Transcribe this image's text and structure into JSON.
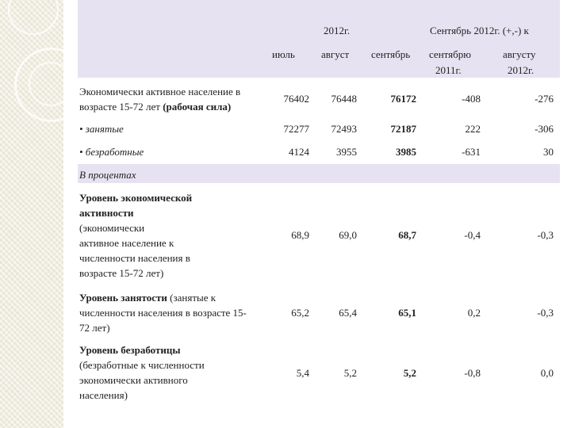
{
  "header": {
    "year": "2012г.",
    "change_title": "Сентябрь 2012г. (+,-) к",
    "col_july": "июль",
    "col_aug": "август",
    "col_sep": "сентябрь",
    "col_vs_sep": "сентябрю",
    "col_vs_sep_year": "2011г.",
    "col_vs_aug": "августу",
    "col_vs_aug_year": "2012г."
  },
  "rows": {
    "labor": {
      "label_1": "Экономически активное население в",
      "label_2a": "возрасте 15-72 лет ",
      "label_2b": "(рабочая сила)",
      "v": [
        "76402",
        "76448",
        "76172",
        "-408",
        "-276"
      ]
    },
    "employed": {
      "label": "• занятые",
      "v": [
        "72277",
        "72493",
        "72187",
        "222",
        "-306"
      ]
    },
    "unemployed": {
      "label": "• безработные",
      "v": [
        "4124",
        "3955",
        "3985",
        "-631",
        "30"
      ]
    },
    "percent_section": "В процентах",
    "activity": {
      "l1": "Уровень экономической",
      "l2": "активности",
      "l3": "(экономически",
      "l4": "активное население к",
      "l5": "численности населения в",
      "l6": "возрасте 15-72 лет)",
      "v": [
        "68,9",
        "69,0",
        "68,7",
        "-0,4",
        "-0,3"
      ]
    },
    "employment": {
      "l1a": "Уровень занятости",
      "l1b": "  (занятые к",
      "l2": "численности населения в возрасте 15-",
      "l3": "72 лет)",
      "v": [
        "65,2",
        "65,4",
        "65,1",
        "0,2",
        "-0,3"
      ]
    },
    "unemployment": {
      "l1": "Уровень безработицы",
      "l2": "(безработные к численности",
      "l3": "экономически активного",
      "l4": "населения)",
      "v": [
        "5,4",
        "5,2",
        "5,2",
        "-0,8",
        "0,0"
      ]
    }
  }
}
